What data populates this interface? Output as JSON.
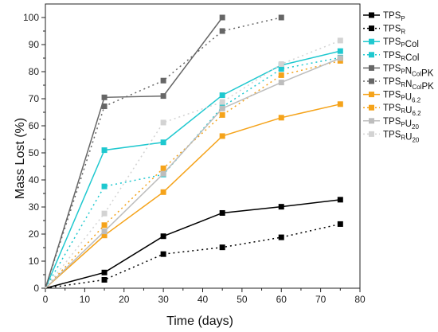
{
  "chart_data": {
    "type": "line",
    "xlabel": "Time (days)",
    "ylabel": "Mass Lost (%)",
    "xlim": [
      0,
      80
    ],
    "ylim": [
      0,
      105
    ],
    "xticks": [
      0,
      10,
      20,
      30,
      40,
      50,
      60,
      70,
      80
    ],
    "yticks": [
      0,
      10,
      20,
      30,
      40,
      50,
      60,
      70,
      80,
      90,
      100
    ],
    "grid": false,
    "legend_position": "right",
    "series": [
      {
        "name_main": "TPS",
        "name_sub": "P",
        "name_rest": "",
        "name_sub2": "",
        "name_rest2": "",
        "color": "#000000",
        "dashed": false,
        "x": [
          0,
          15,
          30,
          45,
          60,
          75
        ],
        "y": [
          0,
          5.8,
          19.2,
          27.8,
          30.1,
          32.7
        ]
      },
      {
        "name_main": "TPS",
        "name_sub": "R",
        "name_rest": "",
        "name_sub2": "",
        "name_rest2": "",
        "color": "#000000",
        "dashed": true,
        "x": [
          0,
          15,
          30,
          45,
          60,
          75
        ],
        "y": [
          0,
          3.1,
          12.6,
          15.1,
          18.8,
          23.7
        ]
      },
      {
        "name_main": "TPS",
        "name_sub": "P",
        "name_rest": "Col",
        "name_sub2": "",
        "name_rest2": "",
        "color": "#1ec8cf",
        "dashed": false,
        "x": [
          0,
          15,
          30,
          45,
          60,
          75
        ],
        "y": [
          0,
          51.0,
          53.9,
          71.3,
          82.4,
          87.6
        ]
      },
      {
        "name_main": "TPS",
        "name_sub": "R",
        "name_rest": "Col",
        "name_sub2": "",
        "name_rest2": "",
        "color": "#1ec8cf",
        "dashed": true,
        "x": [
          0,
          15,
          30,
          45,
          60,
          75
        ],
        "y": [
          0,
          37.6,
          42.0,
          67.0,
          81.0,
          85.2
        ]
      },
      {
        "name_main": "TPS",
        "name_sub": "P",
        "name_rest": "N",
        "name_sub2": "Col",
        "name_rest2": "PK",
        "color": "#666666",
        "dashed": false,
        "x": [
          0,
          15,
          30,
          45
        ],
        "y": [
          0,
          70.5,
          71.0,
          100.0
        ]
      },
      {
        "name_main": "TPS",
        "name_sub": "R",
        "name_rest": "N",
        "name_sub2": "Col",
        "name_rest2": "PK",
        "color": "#666666",
        "dashed": true,
        "x": [
          0,
          15,
          30,
          45,
          60
        ],
        "y": [
          0,
          67.2,
          76.7,
          95.0,
          100.0
        ]
      },
      {
        "name_main": "TPS",
        "name_sub": "P",
        "name_rest": "U",
        "name_sub2": "6.2",
        "name_rest2": "",
        "color": "#f5a31a",
        "dashed": false,
        "x": [
          0,
          15,
          30,
          45,
          60,
          75
        ],
        "y": [
          0,
          19.5,
          35.5,
          56.2,
          63.0,
          68.0
        ]
      },
      {
        "name_main": "TPS",
        "name_sub": "R",
        "name_rest": "U",
        "name_sub2": "6.2",
        "name_rest2": "",
        "color": "#f5a31a",
        "dashed": true,
        "x": [
          0,
          15,
          30,
          45,
          60,
          75
        ],
        "y": [
          0,
          23.3,
          44.3,
          64.0,
          78.7,
          84.0
        ]
      },
      {
        "name_main": "TPS",
        "name_sub": "P",
        "name_rest": "U",
        "name_sub2": "20",
        "name_rest2": "",
        "color": "#bdbdbd",
        "dashed": false,
        "x": [
          0,
          15,
          30,
          45,
          60,
          75
        ],
        "y": [
          0,
          21.0,
          42.3,
          66.4,
          76.0,
          85.0
        ]
      },
      {
        "name_main": "TPS",
        "name_sub": "R",
        "name_rest": "U",
        "name_sub2": "20",
        "name_rest2": "",
        "color": "#d3d3d3",
        "dashed": true,
        "x": [
          0,
          15,
          30,
          45,
          60,
          75
        ],
        "y": [
          0,
          27.6,
          61.2,
          68.8,
          82.8,
          91.5
        ]
      }
    ]
  }
}
